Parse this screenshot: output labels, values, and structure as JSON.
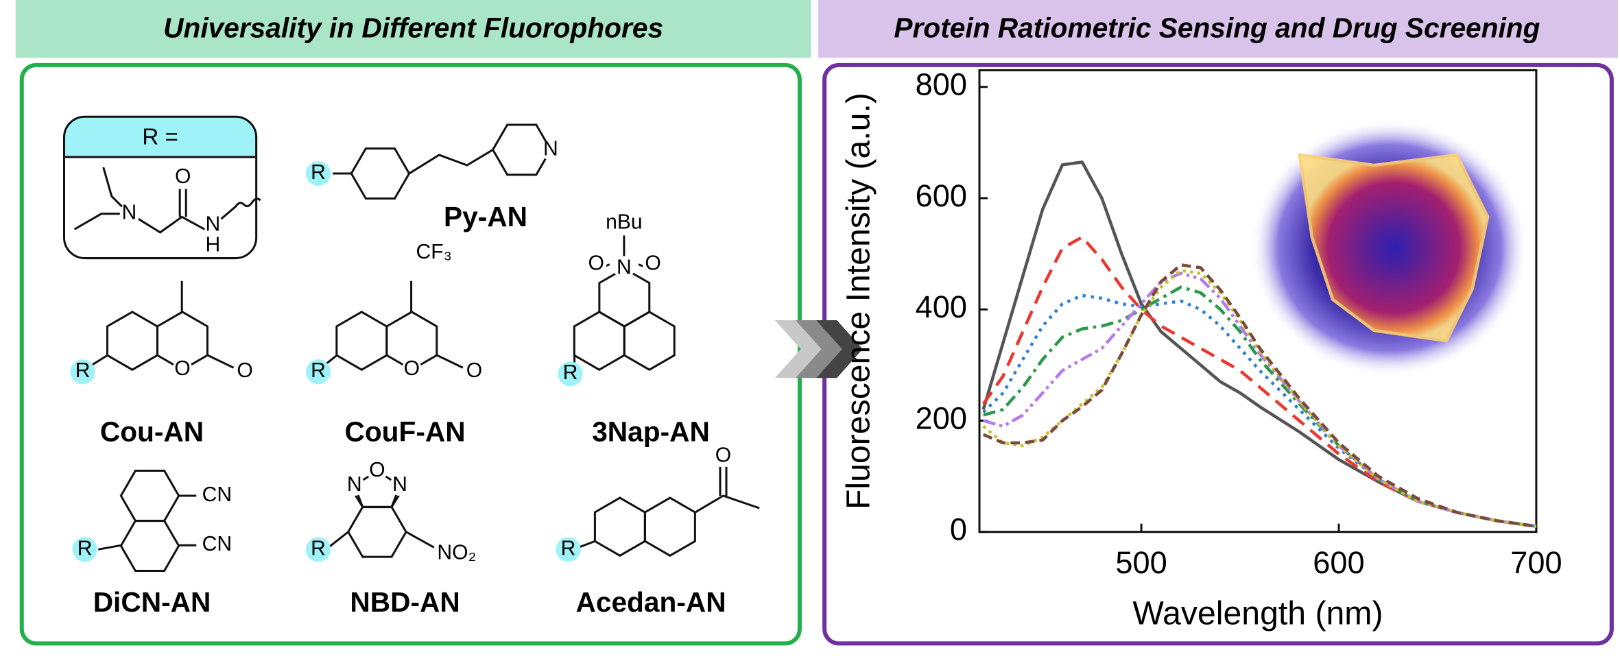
{
  "left_panel": {
    "title": "Universality in Different Fluorophores",
    "r_group": {
      "label": "R =",
      "atoms": [
        "N",
        "O",
        "N",
        "H"
      ]
    },
    "compounds": [
      {
        "name": "Py-AN",
        "atoms": [
          "R",
          "N"
        ]
      },
      {
        "name": "Cou-AN",
        "atoms": [
          "R",
          "O",
          "O"
        ]
      },
      {
        "name": "CouF-AN",
        "atoms": [
          "CF₃",
          "R",
          "O",
          "O"
        ]
      },
      {
        "name": "3Nap-AN",
        "atoms": [
          "nBu",
          "N",
          "O",
          "O",
          "R"
        ]
      },
      {
        "name": "DiCN-AN",
        "atoms": [
          "CN",
          "CN",
          "R"
        ]
      },
      {
        "name": "NBD-AN",
        "atoms": [
          "N",
          "O",
          "N",
          "R",
          "NO₂"
        ]
      },
      {
        "name": "Acedan-AN",
        "atoms": [
          "O",
          "R"
        ]
      }
    ]
  },
  "right_panel": {
    "title": "Protein Ratiometric Sensing and Drug Screening"
  },
  "chart_data": {
    "type": "line",
    "x_label": "Wavelength (nm)",
    "y_label": "Fluorescence Intensity (a.u.)",
    "x": [
      420,
      430,
      440,
      450,
      460,
      470,
      480,
      490,
      500,
      510,
      520,
      530,
      540,
      550,
      560,
      580,
      600,
      620,
      640,
      660,
      680,
      700
    ],
    "xlim": [
      418,
      700
    ],
    "xticks": [
      500,
      600,
      700
    ],
    "ylim": [
      0,
      830
    ],
    "yticks": [
      0,
      200,
      400,
      600,
      800
    ],
    "series": [
      {
        "color": "#555555",
        "dash": "none",
        "values": [
          220,
          340,
          460,
          580,
          660,
          665,
          600,
          500,
          410,
          360,
          330,
          300,
          270,
          250,
          225,
          180,
          130,
          90,
          55,
          35,
          20,
          10
        ]
      },
      {
        "color": "#e8392f",
        "dash": "14 8",
        "values": [
          230,
          280,
          360,
          440,
          510,
          530,
          490,
          440,
          400,
          370,
          350,
          330,
          310,
          290,
          260,
          200,
          140,
          90,
          55,
          35,
          20,
          10
        ]
      },
      {
        "color": "#2f7fd8",
        "dash": "3 5",
        "values": [
          215,
          250,
          310,
          370,
          410,
          425,
          420,
          410,
          405,
          410,
          415,
          400,
          370,
          330,
          290,
          220,
          150,
          95,
          55,
          35,
          20,
          10
        ]
      },
      {
        "color": "#2a9a4a",
        "dash": "12 5 3 5",
        "values": [
          210,
          220,
          260,
          310,
          350,
          365,
          370,
          380,
          400,
          420,
          440,
          430,
          400,
          360,
          310,
          230,
          155,
          95,
          55,
          35,
          20,
          10
        ]
      },
      {
        "color": "#b57be8",
        "dash": "12 4 3 4 3 4",
        "values": [
          200,
          190,
          210,
          250,
          290,
          310,
          330,
          370,
          410,
          450,
          465,
          455,
          420,
          370,
          320,
          235,
          155,
          95,
          55,
          35,
          20,
          10
        ]
      },
      {
        "color": "#c8c22a",
        "dash": "3 4",
        "values": [
          190,
          160,
          155,
          170,
          200,
          230,
          260,
          320,
          390,
          440,
          470,
          465,
          430,
          380,
          325,
          235,
          155,
          95,
          55,
          35,
          20,
          10
        ]
      },
      {
        "color": "#7a4a3a",
        "dash": "9 5",
        "values": [
          175,
          160,
          160,
          165,
          200,
          225,
          255,
          320,
          390,
          450,
          480,
          475,
          435,
          385,
          330,
          240,
          160,
          100,
          60,
          35,
          20,
          10
        ]
      }
    ]
  }
}
